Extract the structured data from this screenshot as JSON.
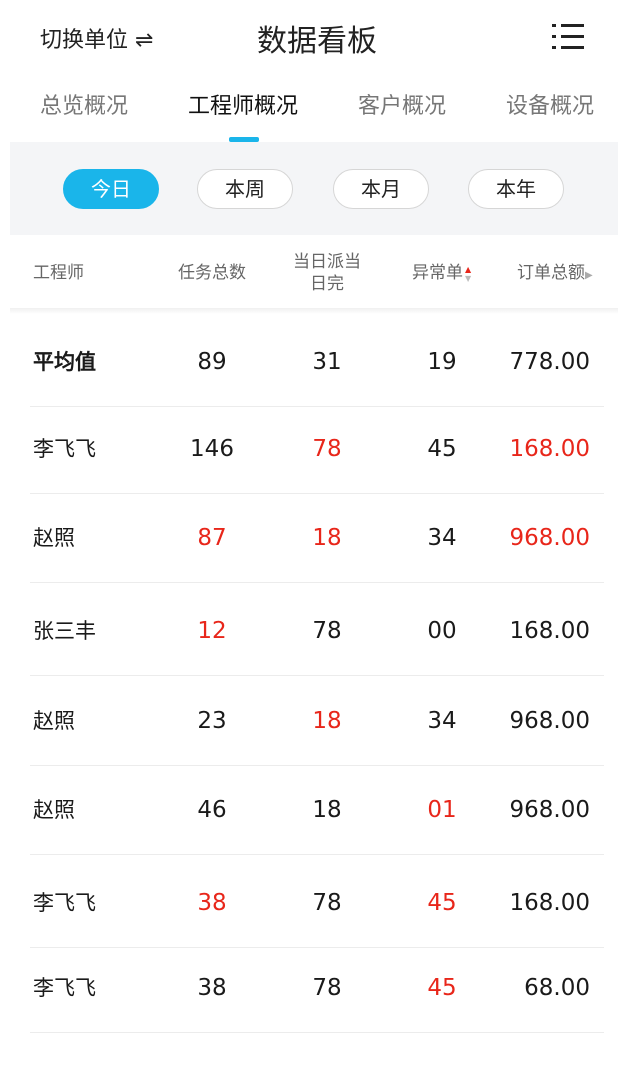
{
  "header": {
    "switch_unit": "切换单位 ⇌",
    "title": "数据看板",
    "menu_icon": "list-menu-icon"
  },
  "tabs": [
    {
      "label": "总览概况",
      "active": false
    },
    {
      "label": "工程师概况",
      "active": true
    },
    {
      "label": "客户概况",
      "active": false
    },
    {
      "label": "设备概况",
      "active": false
    }
  ],
  "periods": [
    {
      "label": "今日",
      "active": true
    },
    {
      "label": "本周",
      "active": false
    },
    {
      "label": "本月",
      "active": false
    },
    {
      "label": "本年",
      "active": false
    }
  ],
  "colors": {
    "accent": "#1ab5ea",
    "alert": "#e8261a"
  },
  "table": {
    "headers": [
      "工程师",
      "任务总数",
      "当日派当日完",
      "异常单",
      "订单总额"
    ],
    "sort_column": "异常单",
    "sort_direction": "ascending",
    "rows": [
      {
        "name": "平均值",
        "tasks": "89",
        "same_day": "31",
        "abnormal": "19",
        "amount": "778.00",
        "red": []
      },
      {
        "name": "李飞飞",
        "tasks": "146",
        "same_day": "78",
        "abnormal": "45",
        "amount": "168.00",
        "red": [
          "same_day",
          "amount"
        ]
      },
      {
        "name": "赵照",
        "tasks": "87",
        "same_day": "18",
        "abnormal": "34",
        "amount": "968.00",
        "red": [
          "tasks",
          "same_day",
          "amount"
        ]
      },
      {
        "name": "张三丰",
        "tasks": "12",
        "same_day": "78",
        "abnormal": "00",
        "amount": "168.00",
        "red": [
          "tasks"
        ]
      },
      {
        "name": "赵照",
        "tasks": "23",
        "same_day": "18",
        "abnormal": "34",
        "amount": "968.00",
        "red": [
          "same_day"
        ]
      },
      {
        "name": "赵照",
        "tasks": "46",
        "same_day": "18",
        "abnormal": "01",
        "amount": "968.00",
        "red": [
          "abnormal"
        ]
      },
      {
        "name": "李飞飞",
        "tasks": "38",
        "same_day": "78",
        "abnormal": "45",
        "amount": "168.00",
        "red": [
          "tasks",
          "abnormal"
        ]
      },
      {
        "name": "李飞飞",
        "tasks": "38",
        "same_day": "78",
        "abnormal": "45",
        "amount": "68.00",
        "red": [
          "abnormal"
        ]
      }
    ]
  }
}
